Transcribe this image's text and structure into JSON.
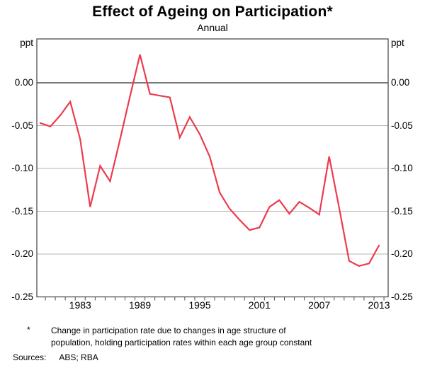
{
  "title": "Effect of Ageing on Participation*",
  "subtitle": "Annual",
  "footnote": {
    "marker": "*",
    "text": "Change in participation rate due to changes in age structure of\npopulation, holding participation rates within each age group constant"
  },
  "sources": {
    "label": "Sources:",
    "value": "ABS; RBA"
  },
  "chart_data": {
    "type": "line",
    "title": "Effect of Ageing on Participation*",
    "subtitle": "Annual",
    "unit_left": "ppt",
    "unit_right": "ppt",
    "xlabel": "",
    "ylabel": "ppt",
    "ylim": [
      -0.25,
      0.045
    ],
    "grid": "horizontal",
    "zero_line": true,
    "legend_position": "none",
    "x_tick_labels": [
      "1983",
      "1989",
      "1995",
      "2001",
      "2007",
      "2013"
    ],
    "x_tick_years": [
      1983,
      1989,
      1995,
      2001,
      2007,
      2013
    ],
    "minor_ticks_yearly": true,
    "y_tick_labels": [
      "0.00",
      "-0.05",
      "-0.10",
      "-0.15",
      "-0.20",
      "-0.25"
    ],
    "y_tick_values": [
      0,
      -0.05,
      -0.1,
      -0.15,
      -0.2,
      -0.25
    ],
    "x": [
      1979,
      1980,
      1981,
      1982,
      1983,
      1984,
      1985,
      1986,
      1987,
      1988,
      1989,
      1990,
      1991,
      1992,
      1993,
      1994,
      1995,
      1996,
      1997,
      1998,
      1999,
      2000,
      2001,
      2002,
      2003,
      2004,
      2005,
      2006,
      2007,
      2008,
      2009,
      2010,
      2011,
      2012,
      2013
    ],
    "series": [
      {
        "name": "Effect of ageing on participation",
        "values": [
          -0.047,
          -0.051,
          -0.038,
          -0.022,
          -0.066,
          -0.145,
          -0.097,
          -0.115,
          -0.066,
          -0.016,
          0.033,
          -0.013,
          -0.015,
          -0.017,
          -0.064,
          -0.04,
          -0.06,
          -0.086,
          -0.128,
          -0.147,
          -0.16,
          -0.172,
          -0.169,
          -0.145,
          -0.137,
          -0.153,
          -0.139,
          -0.146,
          -0.154,
          -0.086,
          -0.146,
          -0.208,
          -0.214,
          -0.211,
          -0.19
        ]
      }
    ],
    "colors": {
      "line": "#ed3b4c",
      "grid": "#b5b5b5",
      "zero_line": "#2a2a2a",
      "axis_frame": "#4e4e4e",
      "text": "#000000"
    }
  }
}
